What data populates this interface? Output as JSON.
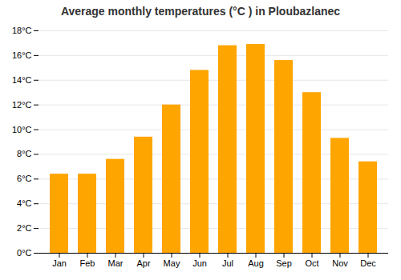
{
  "chart_data": {
    "type": "bar",
    "title": "Average monthly temperatures (°C ) in Ploubazlanec",
    "categories": [
      "Jan",
      "Feb",
      "Mar",
      "Apr",
      "May",
      "Jun",
      "Jul",
      "Aug",
      "Sep",
      "Oct",
      "Nov",
      "Dec"
    ],
    "values": [
      6.4,
      6.4,
      7.6,
      9.4,
      12.0,
      14.8,
      16.8,
      16.9,
      15.6,
      13.0,
      9.3,
      7.4
    ],
    "color": "#FFA500",
    "ylim": [
      0,
      18
    ],
    "yticks": [
      {
        "value": 0,
        "label": "0°C"
      },
      {
        "value": 2,
        "label": "2°C"
      },
      {
        "value": 4,
        "label": "4°C"
      },
      {
        "value": 6,
        "label": "6°C"
      },
      {
        "value": 8,
        "label": "8°C"
      },
      {
        "value": 10,
        "label": "10°C"
      },
      {
        "value": 12,
        "label": "12°C"
      },
      {
        "value": 14,
        "label": "14°C"
      },
      {
        "value": 16,
        "label": "16°C"
      },
      {
        "value": 18,
        "label": "18°C"
      }
    ],
    "grid": true
  }
}
